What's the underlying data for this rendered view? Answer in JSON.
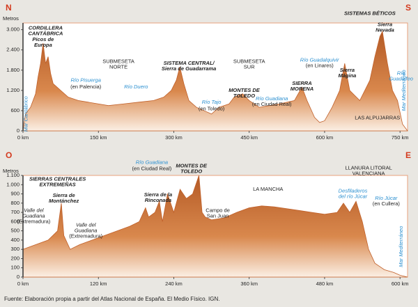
{
  "chart_data": [
    {
      "type": "area",
      "left_label": "N",
      "right_label": "S",
      "ylabel": "Metros",
      "color": "#c0602a",
      "xlim": [
        0,
        765
      ],
      "ylim": [
        0,
        3200
      ],
      "xticks": [
        {
          "value": 0,
          "label": "0 km"
        },
        {
          "value": 150,
          "label": "150 km"
        },
        {
          "value": 300,
          "label": "300 km"
        },
        {
          "value": 450,
          "label": "450 km"
        },
        {
          "value": 600,
          "label": "600 km"
        },
        {
          "value": 750,
          "label": "750 km"
        }
      ],
      "yticks": [
        0,
        600,
        {
          "value": 1200,
          "label": "1.200"
        },
        {
          "value": 1800,
          "label": "1.800"
        },
        {
          "value": 2400,
          "label": "2.400"
        },
        {
          "value": 3000,
          "label": "3.000"
        }
      ],
      "x": [
        0,
        5,
        15,
        25,
        30,
        35,
        40,
        45,
        50,
        55,
        60,
        75,
        90,
        110,
        130,
        150,
        170,
        200,
        230,
        260,
        280,
        295,
        305,
        312,
        320,
        330,
        345,
        360,
        375,
        390,
        410,
        420,
        437,
        450,
        470,
        490,
        510,
        540,
        555,
        565,
        580,
        590,
        600,
        615,
        630,
        640,
        650,
        670,
        690,
        700,
        710,
        715,
        725,
        735,
        745,
        755,
        765
      ],
      "values": [
        0,
        500,
        700,
        1100,
        1600,
        2000,
        2600,
        2000,
        2200,
        1700,
        1400,
        1200,
        1000,
        900,
        850,
        800,
        750,
        800,
        850,
        900,
        1000,
        1200,
        1500,
        1900,
        1400,
        900,
        700,
        600,
        500,
        700,
        800,
        1000,
        1100,
        900,
        700,
        750,
        800,
        900,
        1300,
        900,
        400,
        250,
        300,
        700,
        1200,
        2000,
        1200,
        900,
        1500,
        2200,
        2800,
        2950,
        2000,
        1200,
        900,
        200,
        0
      ],
      "annotations": [
        {
          "text": [
            "CORDILLERA",
            "CANTÁBRICA"
          ],
          "kind": "range",
          "x": 45,
          "y": 3050
        },
        {
          "text": [
            "Picos de",
            "Europa"
          ],
          "kind": "range",
          "x": 40,
          "y": 2700
        },
        {
          "text": [
            "SUBMESETA",
            "NORTE"
          ],
          "kind": "plain",
          "x": 190,
          "y": 2050
        },
        {
          "text": [
            "SISTEMA CENTRAL/",
            "Sierra de Guadarrama"
          ],
          "kind": "range",
          "x": 330,
          "y": 2000
        },
        {
          "text": [
            "SUBMESETA",
            "SUR"
          ],
          "kind": "plain",
          "x": 450,
          "y": 2050
        },
        {
          "text": [
            "Río Pisuerga"
          ],
          "kind": "river",
          "x": 125,
          "y": 1500
        },
        {
          "text": [
            "(en Palencia)"
          ],
          "kind": "plain",
          "x": 125,
          "y": 1300
        },
        {
          "text": [
            "Río Duero"
          ],
          "kind": "river",
          "x": 225,
          "y": 1300
        },
        {
          "text": [
            "Río Tajo"
          ],
          "kind": "river",
          "x": 375,
          "y": 850
        },
        {
          "text": [
            "(en Toledo)"
          ],
          "kind": "plain",
          "x": 375,
          "y": 650
        },
        {
          "text": [
            "MONTES DE",
            "TOLEDO"
          ],
          "kind": "range",
          "x": 440,
          "y": 1200
        },
        {
          "text": [
            "Río Guadiana"
          ],
          "kind": "river",
          "x": 495,
          "y": 950
        },
        {
          "text": [
            "(en Ciudad Real)"
          ],
          "kind": "plain",
          "x": 495,
          "y": 780
        },
        {
          "text": [
            "SIERRA",
            "MORENA"
          ],
          "kind": "range",
          "x": 555,
          "y": 1400
        },
        {
          "text": [
            "Río Guadalquivir"
          ],
          "kind": "river",
          "x": 590,
          "y": 2100
        },
        {
          "text": [
            "(en Linares)"
          ],
          "kind": "plain",
          "x": 590,
          "y": 1930
        },
        {
          "text": [
            "Sierra",
            "Mágina"
          ],
          "kind": "range",
          "x": 645,
          "y": 1800
        },
        {
          "text": [
            "SISTEMAS BÉTICOS"
          ],
          "kind": "range",
          "x": 690,
          "y": 3480
        },
        {
          "text": [
            "Sierra",
            "Nevada"
          ],
          "kind": "range",
          "x": 720,
          "y": 3150
        },
        {
          "text": [
            "Río",
            "Guadalfeo"
          ],
          "kind": "river",
          "x": 752,
          "y": 1700
        },
        {
          "text": [
            "LAS ALPUJARRAS"
          ],
          "kind": "plain",
          "x": 705,
          "y": 380
        },
        {
          "text": [
            "Mar Cantábrico"
          ],
          "kind": "sea",
          "x": 6,
          "y": 500
        },
        {
          "text": [
            "Mar Mediterráneo"
          ],
          "kind": "sea",
          "x": 758,
          "y": 1200
        }
      ]
    },
    {
      "type": "area",
      "left_label": "O",
      "right_label": "E",
      "ylabel": "Metros",
      "color": "#c0602a",
      "xlim": [
        0,
        612
      ],
      "ylim": [
        0,
        1100
      ],
      "xticks": [
        {
          "value": 0,
          "label": "0 km"
        },
        {
          "value": 120,
          "label": "120 km"
        },
        {
          "value": 240,
          "label": "240 km"
        },
        {
          "value": 360,
          "label": "360 km"
        },
        {
          "value": 480,
          "label": "480 km"
        },
        {
          "value": 600,
          "label": "600 km"
        }
      ],
      "yticks": [
        0,
        100,
        200,
        300,
        400,
        500,
        600,
        700,
        800,
        900,
        {
          "value": 1000,
          "label": "1.000"
        },
        {
          "value": 1100,
          "label": "1.100"
        }
      ],
      "x": [
        0,
        20,
        40,
        55,
        61,
        65,
        75,
        90,
        110,
        130,
        150,
        170,
        185,
        195,
        200,
        210,
        217,
        222,
        230,
        240,
        250,
        260,
        270,
        280,
        285,
        290,
        300,
        320,
        340,
        360,
        380,
        400,
        420,
        440,
        460,
        480,
        500,
        510,
        520,
        530,
        540,
        550,
        560,
        575,
        590,
        600,
        612
      ],
      "values": [
        300,
        350,
        400,
        500,
        800,
        450,
        300,
        350,
        400,
        450,
        500,
        550,
        600,
        750,
        650,
        700,
        820,
        600,
        900,
        700,
        950,
        850,
        900,
        1100,
        700,
        650,
        620,
        640,
        700,
        750,
        770,
        760,
        740,
        720,
        700,
        680,
        700,
        800,
        700,
        820,
        600,
        300,
        150,
        80,
        50,
        20,
        0
      ],
      "annotations": [
        {
          "text": [
            "SIERRAS CENTRALES",
            "EXTREMEÑAS"
          ],
          "kind": "range",
          "x": 55,
          "y": 1060
        },
        {
          "text": [
            "Sierra de",
            "Montánchez"
          ],
          "kind": "range",
          "x": 65,
          "y": 880
        },
        {
          "text": [
            "Valle del",
            "Guadiana"
          ],
          "kind": "italic",
          "x": 17,
          "y": 720
        },
        {
          "text": [
            "(Extremadura)"
          ],
          "kind": "plain",
          "x": 17,
          "y": 600
        },
        {
          "text": [
            "Valle del",
            "Guadiana"
          ],
          "kind": "italic",
          "x": 100,
          "y": 560
        },
        {
          "text": [
            "(Extremadura)"
          ],
          "kind": "plain",
          "x": 100,
          "y": 440
        },
        {
          "text": [
            "Río Guadiana"
          ],
          "kind": "river",
          "x": 205,
          "y": 1240
        },
        {
          "text": [
            "(en Ciudad Real)"
          ],
          "kind": "plain",
          "x": 205,
          "y": 1170
        },
        {
          "text": [
            "MONTES DE",
            "TOLEDO"
          ],
          "kind": "range",
          "x": 268,
          "y": 1200
        },
        {
          "text": [
            "Sierra de la",
            "Rinconada"
          ],
          "kind": "range",
          "x": 215,
          "y": 890
        },
        {
          "text": [
            "Campo de",
            "San Juan"
          ],
          "kind": "plain",
          "x": 310,
          "y": 720
        },
        {
          "text": [
            "LA MANCHA"
          ],
          "kind": "plain",
          "x": 390,
          "y": 950
        },
        {
          "text": [
            "Desfiladeros",
            "del río Júcar"
          ],
          "kind": "river",
          "x": 525,
          "y": 930
        },
        {
          "text": [
            "LLANURA LITORAL",
            "VALENCIANA"
          ],
          "kind": "plain",
          "x": 550,
          "y": 1180
        },
        {
          "text": [
            "Río Júcar"
          ],
          "kind": "river",
          "x": 578,
          "y": 850
        },
        {
          "text": [
            "(en Cullera)"
          ],
          "kind": "plain",
          "x": 578,
          "y": 790
        },
        {
          "text": [
            "Mar Mediterráneo"
          ],
          "kind": "sea",
          "x": 602,
          "y": 330
        }
      ]
    }
  ],
  "source": "Fuente: Elaboración propia a partir del Atlas Nacional de España. El Medio Físico. IGN."
}
